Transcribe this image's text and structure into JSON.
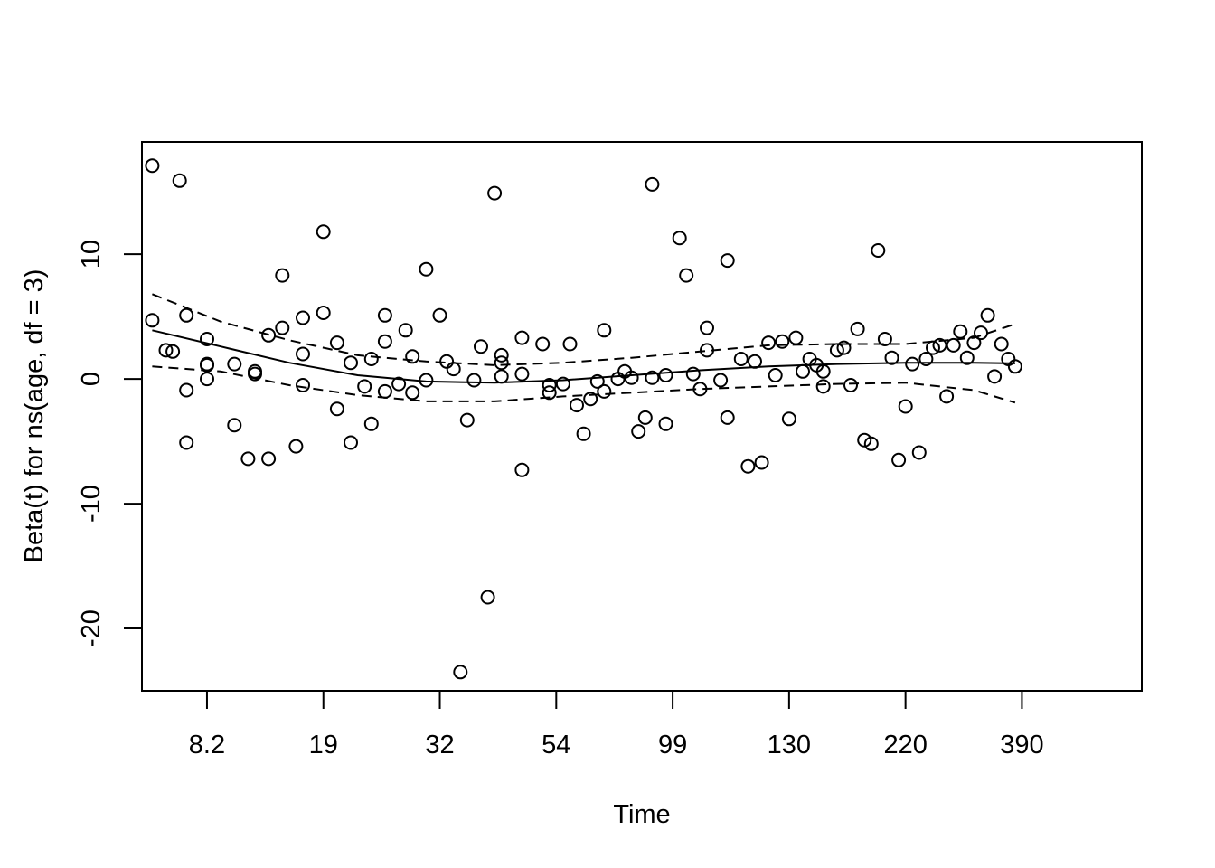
{
  "chart_data": {
    "type": "scatter",
    "xlabel": "Time",
    "ylabel": "Beta(t) for ns(age, df = 3)",
    "x_scale": "rank-transformed time (tick labels show time values)",
    "x_ticks": [
      {
        "rank": 8,
        "label": "8.2"
      },
      {
        "rank": 25,
        "label": "19"
      },
      {
        "rank": 42,
        "label": "32"
      },
      {
        "rank": 59,
        "label": "54"
      },
      {
        "rank": 76,
        "label": "99"
      },
      {
        "rank": 93,
        "label": "130"
      },
      {
        "rank": 110,
        "label": "220"
      },
      {
        "rank": 127,
        "label": "390"
      }
    ],
    "xlim": [
      -1.5,
      144.5
    ],
    "ylim": [
      -25,
      19
    ],
    "y_ticks": [
      -20,
      -10,
      0,
      10
    ],
    "points": [
      [
        0,
        17.1
      ],
      [
        0,
        4.7
      ],
      [
        2,
        2.3
      ],
      [
        3,
        2.2
      ],
      [
        4,
        15.9
      ],
      [
        5,
        -0.9
      ],
      [
        5,
        -5.1
      ],
      [
        5,
        5.1
      ],
      [
        8,
        3.2
      ],
      [
        8,
        1.2
      ],
      [
        8,
        1.1
      ],
      [
        8,
        0
      ],
      [
        12,
        1.2
      ],
      [
        12,
        -3.7
      ],
      [
        14,
        -6.4
      ],
      [
        15,
        0.6
      ],
      [
        15,
        0.4
      ],
      [
        17,
        -6.4
      ],
      [
        17,
        3.5
      ],
      [
        19,
        8.3
      ],
      [
        19,
        4.1
      ],
      [
        21,
        -5.4
      ],
      [
        22,
        4.9
      ],
      [
        22,
        2
      ],
      [
        22,
        -0.5
      ],
      [
        25,
        11.8
      ],
      [
        25,
        5.3
      ],
      [
        27,
        2.9
      ],
      [
        27,
        -2.4
      ],
      [
        29,
        1.3
      ],
      [
        29,
        -5.1
      ],
      [
        31,
        -0.6
      ],
      [
        32,
        1.6
      ],
      [
        32,
        -3.6
      ],
      [
        34,
        5.1
      ],
      [
        34,
        3
      ],
      [
        34,
        -1
      ],
      [
        36,
        -0.4
      ],
      [
        37,
        3.9
      ],
      [
        38,
        1.8
      ],
      [
        38,
        -1.1
      ],
      [
        40,
        8.8
      ],
      [
        40,
        -0.1
      ],
      [
        42,
        5.1
      ],
      [
        43,
        1.4
      ],
      [
        44,
        0.8
      ],
      [
        45,
        -23.5
      ],
      [
        46,
        -3.3
      ],
      [
        47,
        -0.1
      ],
      [
        48,
        2.6
      ],
      [
        49,
        -17.5
      ],
      [
        50,
        14.9
      ],
      [
        51,
        1.9
      ],
      [
        51,
        1.3
      ],
      [
        51,
        0.2
      ],
      [
        54,
        3.3
      ],
      [
        54,
        0.4
      ],
      [
        54,
        -7.3
      ],
      [
        57,
        2.8
      ],
      [
        58,
        -0.5
      ],
      [
        58,
        -1.1
      ],
      [
        60,
        -0.4
      ],
      [
        61,
        2.8
      ],
      [
        62,
        -2.1
      ],
      [
        63,
        -4.4
      ],
      [
        64,
        -1.6
      ],
      [
        65,
        -0.2
      ],
      [
        66,
        3.9
      ],
      [
        66,
        -1
      ],
      [
        68,
        0
      ],
      [
        69,
        0.6
      ],
      [
        70,
        0.1
      ],
      [
        71,
        -4.2
      ],
      [
        72,
        -3.1
      ],
      [
        73,
        15.6
      ],
      [
        73,
        0.1
      ],
      [
        75,
        -3.6
      ],
      [
        75,
        0.3
      ],
      [
        77,
        11.3
      ],
      [
        78,
        8.3
      ],
      [
        79,
        0.4
      ],
      [
        80,
        -0.8
      ],
      [
        81,
        4.1
      ],
      [
        81,
        2.3
      ],
      [
        83,
        -0.1
      ],
      [
        84,
        9.5
      ],
      [
        84,
        -3.1
      ],
      [
        86,
        1.6
      ],
      [
        87,
        -7
      ],
      [
        88,
        1.4
      ],
      [
        89,
        -6.7
      ],
      [
        90,
        2.9
      ],
      [
        91,
        0.3
      ],
      [
        92,
        3
      ],
      [
        93,
        -3.2
      ],
      [
        94,
        3.3
      ],
      [
        95,
        0.6
      ],
      [
        96,
        1.6
      ],
      [
        97,
        1.1
      ],
      [
        98,
        0.6
      ],
      [
        98,
        -0.6
      ],
      [
        100,
        2.3
      ],
      [
        101,
        2.5
      ],
      [
        102,
        -0.5
      ],
      [
        103,
        4
      ],
      [
        104,
        -4.9
      ],
      [
        105,
        -5.2
      ],
      [
        106,
        10.3
      ],
      [
        107,
        3.2
      ],
      [
        108,
        1.7
      ],
      [
        109,
        -6.5
      ],
      [
        110,
        -2.2
      ],
      [
        111,
        1.2
      ],
      [
        112,
        -5.9
      ],
      [
        113,
        1.6
      ],
      [
        114,
        2.5
      ],
      [
        115,
        2.7
      ],
      [
        116,
        -1.4
      ],
      [
        117,
        2.7
      ],
      [
        118,
        3.8
      ],
      [
        119,
        1.7
      ],
      [
        120,
        2.9
      ],
      [
        121,
        3.7
      ],
      [
        122,
        5.1
      ],
      [
        123,
        0.2
      ],
      [
        124,
        2.8
      ],
      [
        125,
        1.6
      ],
      [
        126,
        1
      ]
    ],
    "fit": [
      [
        0,
        3.9
      ],
      [
        10,
        2.6
      ],
      [
        20,
        1.3
      ],
      [
        30,
        0.3
      ],
      [
        40,
        -0.2
      ],
      [
        50,
        -0.3
      ],
      [
        60,
        -0.1
      ],
      [
        70,
        0.3
      ],
      [
        80,
        0.7
      ],
      [
        90,
        1
      ],
      [
        100,
        1.2
      ],
      [
        110,
        1.3
      ],
      [
        120,
        1.3
      ],
      [
        126,
        1.25
      ]
    ],
    "upper": [
      [
        0,
        6.8
      ],
      [
        10,
        4.6
      ],
      [
        20,
        3.1
      ],
      [
        30,
        1.9
      ],
      [
        40,
        1.4
      ],
      [
        50,
        1.1
      ],
      [
        60,
        1.3
      ],
      [
        70,
        1.7
      ],
      [
        80,
        2.2
      ],
      [
        90,
        2.7
      ],
      [
        100,
        2.8
      ],
      [
        110,
        2.8
      ],
      [
        120,
        3.3
      ],
      [
        126,
        4.4
      ]
    ],
    "lower": [
      [
        0,
        1
      ],
      [
        10,
        0.6
      ],
      [
        20,
        -0.5
      ],
      [
        30,
        -1.3
      ],
      [
        40,
        -1.8
      ],
      [
        50,
        -1.8
      ],
      [
        60,
        -1.4
      ],
      [
        70,
        -1.1
      ],
      [
        80,
        -0.8
      ],
      [
        90,
        -0.6
      ],
      [
        100,
        -0.4
      ],
      [
        110,
        -0.3
      ],
      [
        120,
        -0.9
      ],
      [
        126,
        -1.9
      ]
    ],
    "grid": false,
    "legend": "none"
  }
}
